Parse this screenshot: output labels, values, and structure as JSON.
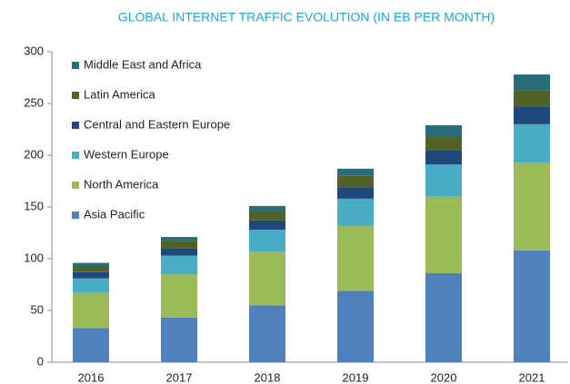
{
  "chart_data": {
    "type": "stacked_bar",
    "title": "GLOBAL INTERNET TRAFFIC EVOLUTION (IN EB PER MONTH)",
    "categories": [
      "2016",
      "2017",
      "2018",
      "2019",
      "2020",
      "2021"
    ],
    "series": [
      {
        "name": "Asia Pacific",
        "color": "#4f81bd",
        "values": [
          33,
          43,
          55,
          69,
          86,
          108
        ]
      },
      {
        "name": "North America",
        "color": "#9bbb59",
        "values": [
          34,
          42,
          52,
          63,
          74,
          85
        ]
      },
      {
        "name": "Western Europe",
        "color": "#4bacc6",
        "values": [
          14,
          18,
          21,
          26,
          31,
          37
        ]
      },
      {
        "name": "Central and Eastern Europe",
        "color": "#1f497d",
        "values": [
          6,
          7,
          9,
          11,
          14,
          17
        ]
      },
      {
        "name": "Latin America",
        "color": "#4f6228",
        "values": [
          6,
          7,
          9,
          11,
          13,
          16
        ]
      },
      {
        "name": "Middle East and Africa",
        "color": "#2b6c7a",
        "values": [
          3,
          4,
          5,
          7,
          11,
          15
        ]
      }
    ],
    "ylim": [
      0,
      300
    ],
    "yticks": [
      0,
      50,
      100,
      150,
      200,
      250,
      300
    ],
    "legend": "top-left"
  }
}
